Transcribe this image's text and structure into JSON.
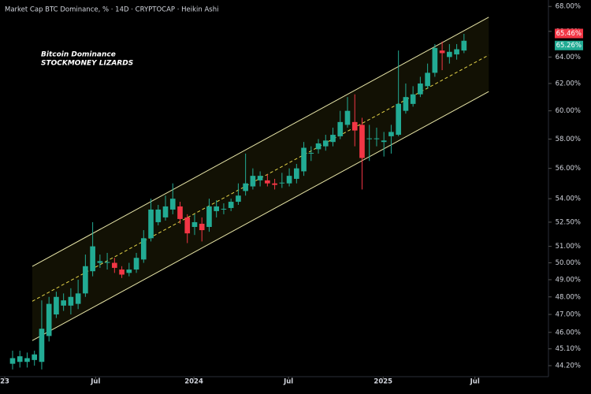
{
  "chart_data": {
    "type": "candlestick",
    "title": "Market Cap BTC Dominance, % · 14D · CRYPTOCAP · Heikin Ashi",
    "annotations": [
      "Bitcoin Dominance",
      "STOCKMONEY LIZARDS"
    ],
    "log_scale": true,
    "grid": false,
    "up_color": "#22ab94",
    "down_color": "#f23645",
    "xlim": [
      -1.73,
      73.6
    ],
    "xticks": [
      {
        "value": -1.08,
        "label": "23"
      },
      {
        "value": 11.4,
        "label": "Jul"
      },
      {
        "value": 24.9,
        "label": "2024"
      },
      {
        "value": 37.9,
        "label": "Jul"
      },
      {
        "value": 50.9,
        "label": "2025"
      },
      {
        "value": 63.5,
        "label": "Jul"
      }
    ],
    "ylim": [
      43.62,
      68.53
    ],
    "yticks": [
      {
        "value": 68,
        "label": "68.00%"
      },
      {
        "value": 66,
        "label": "66.00%"
      },
      {
        "value": 64,
        "label": "64.00%"
      },
      {
        "value": 62,
        "label": "62.00%"
      },
      {
        "value": 60,
        "label": "60.00%"
      },
      {
        "value": 58,
        "label": "58.00%"
      },
      {
        "value": 56,
        "label": "56.00%"
      },
      {
        "value": 54,
        "label": "54.00%"
      },
      {
        "value": 52.5,
        "label": "52.50%"
      },
      {
        "value": 51,
        "label": "51.00%"
      },
      {
        "value": 50,
        "label": "50.00%"
      },
      {
        "value": 49,
        "label": "49.00%"
      },
      {
        "value": 48,
        "label": "48.00%"
      },
      {
        "value": 47,
        "label": "47.00%"
      },
      {
        "value": 46,
        "label": "46.00%"
      },
      {
        "value": 45.1,
        "label": "45.10%"
      },
      {
        "value": 44.2,
        "label": "44.20%"
      }
    ],
    "price_labels": [
      {
        "value": 65.46,
        "label": "65.46%",
        "color": "#f23645"
      },
      {
        "value": 65.26,
        "label": "65.26%",
        "color": "#22ab94"
      }
    ],
    "channel": {
      "x": [
        2.7,
        65.4
      ],
      "upper": [
        49.79,
        67.13
      ],
      "middle": [
        47.75,
        64.15
      ],
      "lower": [
        45.55,
        61.4
      ],
      "color": "#e8e6a8"
    },
    "open": [
      44.3,
      44.4,
      44.4,
      44.5,
      44.4,
      45.8,
      47.0,
      47.5,
      47.5,
      47.6,
      48.2,
      49.5,
      50.0,
      50.0,
      50.0,
      49.6,
      49.4,
      49.6,
      50.2,
      51.5,
      52.5,
      52.8,
      53.3,
      53.5,
      52.8,
      52.2,
      52.4,
      52.2,
      53.2,
      53.3,
      53.4,
      53.8,
      54.5,
      54.8,
      55.2,
      55.2,
      55.0,
      55.0,
      55.0,
      55.3,
      55.8,
      57.0,
      57.3,
      57.5,
      57.8,
      58.2,
      59.0,
      59.2,
      59.0,
      58.0,
      58.0,
      57.8,
      58.2,
      58.3,
      60.0,
      60.5,
      61.2,
      61.8,
      62.8,
      64.5,
      64.0,
      64.2,
      64.5
    ],
    "high": [
      45.0,
      45.0,
      44.9,
      45.0,
      47.8,
      48.0,
      48.3,
      48.2,
      48.5,
      49.0,
      50.5,
      52.5,
      50.5,
      50.6,
      50.3,
      49.8,
      50.0,
      50.6,
      52.0,
      54.0,
      53.6,
      54.2,
      55.0,
      53.8,
      53.0,
      53.0,
      52.8,
      54.0,
      53.9,
      53.7,
      54.0,
      55.0,
      57.0,
      56.0,
      55.8,
      55.6,
      55.3,
      55.7,
      56.0,
      56.3,
      57.8,
      57.5,
      58.0,
      58.3,
      58.8,
      60.0,
      61.0,
      61.2,
      59.5,
      59.0,
      58.8,
      58.5,
      59.0,
      64.5,
      62.0,
      61.8,
      62.5,
      63.5,
      65.0,
      65.2,
      65.0,
      65.0,
      65.8
    ],
    "low": [
      44.0,
      44.1,
      44.1,
      44.2,
      44.0,
      45.5,
      46.8,
      47.2,
      47.0,
      47.3,
      48.0,
      49.2,
      49.7,
      49.6,
      49.4,
      49.1,
      49.2,
      49.4,
      50.0,
      51.3,
      52.3,
      52.6,
      53.0,
      52.4,
      51.2,
      51.7,
      51.3,
      51.9,
      52.8,
      53.0,
      53.2,
      53.6,
      54.2,
      54.6,
      54.8,
      54.8,
      54.6,
      54.7,
      54.8,
      55.0,
      55.5,
      56.5,
      57.0,
      57.2,
      57.5,
      58.0,
      58.8,
      57.5,
      54.6,
      56.5,
      57.5,
      56.8,
      57.0,
      58.2,
      59.8,
      60.3,
      61.0,
      61.6,
      62.5,
      63.0,
      63.5,
      63.8,
      64.3
    ],
    "close": [
      44.6,
      44.7,
      44.6,
      44.8,
      46.2,
      47.6,
      48.0,
      47.8,
      48.0,
      48.2,
      49.8,
      51.0,
      50.1,
      50.05,
      49.7,
      49.3,
      49.6,
      50.3,
      51.5,
      53.3,
      53.3,
      53.5,
      54.0,
      52.7,
      51.8,
      52.5,
      52.0,
      53.5,
      53.5,
      53.35,
      53.8,
      54.2,
      55.0,
      55.5,
      55.5,
      55.0,
      54.9,
      55.05,
      55.5,
      56.0,
      57.4,
      57.05,
      57.7,
      57.9,
      58.3,
      59.2,
      60.0,
      58.6,
      56.7,
      58.05,
      58.05,
      57.9,
      58.5,
      60.5,
      61.0,
      61.2,
      62.0,
      62.8,
      64.7,
      64.3,
      64.4,
      64.6,
      65.26
    ]
  }
}
